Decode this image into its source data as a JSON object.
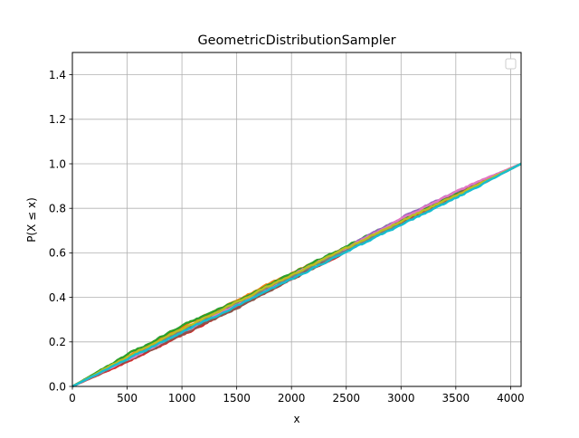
{
  "chart_data": {
    "type": "line",
    "title": "GeometricDistributionSampler",
    "xlabel": "x",
    "ylabel": "P(X ≤ x)",
    "xlim": [
      0,
      4096
    ],
    "ylim": [
      0,
      1.5
    ],
    "xticks": [
      0,
      500,
      1000,
      1500,
      2000,
      2500,
      3000,
      3500,
      4000
    ],
    "xtick_labels": [
      "0",
      "500",
      "1000",
      "1500",
      "2000",
      "2500",
      "3000",
      "3500",
      "4000"
    ],
    "yticks": [
      0.0,
      0.2,
      0.4,
      0.6,
      0.8,
      1.0,
      1.2,
      1.4
    ],
    "ytick_labels": [
      "0.0",
      "0.2",
      "0.4",
      "0.6",
      "0.8",
      "1.0",
      "1.2",
      "1.4"
    ],
    "grid": true,
    "legend": {
      "placement": "upper right",
      "entries": []
    },
    "description": "Many overlapping empirical CDF curves, each rising approximately linearly from 0 at x=0 to 1.0 at x≈4096, with small random deviations.",
    "series_colors": [
      "#1f77b4",
      "#ff7f0e",
      "#2ca02c",
      "#d62728",
      "#9467bd",
      "#8c564b",
      "#e377c2",
      "#7f7f7f",
      "#bcbd22",
      "#17becf"
    ],
    "series": [
      {
        "x": [
          0,
          512,
          1024,
          1536,
          2048,
          2560,
          3072,
          3584,
          4096
        ],
        "y": [
          0,
          0.128,
          0.252,
          0.377,
          0.503,
          0.628,
          0.752,
          0.876,
          1.0
        ]
      },
      {
        "x": [
          0,
          512,
          1024,
          1536,
          2048,
          2560,
          3072,
          3584,
          4096
        ],
        "y": [
          0,
          0.14,
          0.272,
          0.396,
          0.52,
          0.64,
          0.758,
          0.872,
          1.0
        ]
      },
      {
        "x": [
          0,
          512,
          1024,
          1536,
          2048,
          2560,
          3072,
          3584,
          4096
        ],
        "y": [
          0,
          0.145,
          0.278,
          0.392,
          0.518,
          0.645,
          0.768,
          0.885,
          1.0
        ]
      },
      {
        "x": [
          0,
          512,
          1024,
          1536,
          2048,
          2560,
          3072,
          3584,
          4096
        ],
        "y": [
          0,
          0.112,
          0.235,
          0.365,
          0.495,
          0.622,
          0.755,
          0.88,
          1.0
        ]
      },
      {
        "x": [
          0,
          512,
          1024,
          1536,
          2048,
          2560,
          3072,
          3584,
          4096
        ],
        "y": [
          0,
          0.12,
          0.245,
          0.372,
          0.505,
          0.64,
          0.775,
          0.892,
          1.0
        ]
      },
      {
        "x": [
          0,
          512,
          1024,
          1536,
          2048,
          2560,
          3072,
          3584,
          4096
        ],
        "y": [
          0,
          0.118,
          0.238,
          0.362,
          0.492,
          0.625,
          0.758,
          0.882,
          1.0
        ]
      },
      {
        "x": [
          0,
          512,
          1024,
          1536,
          2048,
          2560,
          3072,
          3584,
          4096
        ],
        "y": [
          0,
          0.122,
          0.248,
          0.38,
          0.51,
          0.636,
          0.77,
          0.895,
          1.0
        ]
      },
      {
        "x": [
          0,
          512,
          1024,
          1536,
          2048,
          2560,
          3072,
          3584,
          4096
        ],
        "y": [
          0,
          0.132,
          0.258,
          0.385,
          0.505,
          0.628,
          0.748,
          0.87,
          1.0
        ]
      },
      {
        "x": [
          0,
          512,
          1024,
          1536,
          2048,
          2560,
          3072,
          3584,
          4096
        ],
        "y": [
          0,
          0.135,
          0.262,
          0.388,
          0.512,
          0.634,
          0.76,
          0.878,
          1.0
        ]
      },
      {
        "x": [
          0,
          512,
          1024,
          1536,
          2048,
          2560,
          3072,
          3584,
          4096
        ],
        "y": [
          0,
          0.125,
          0.25,
          0.37,
          0.495,
          0.618,
          0.742,
          0.868,
          1.0
        ]
      }
    ]
  }
}
